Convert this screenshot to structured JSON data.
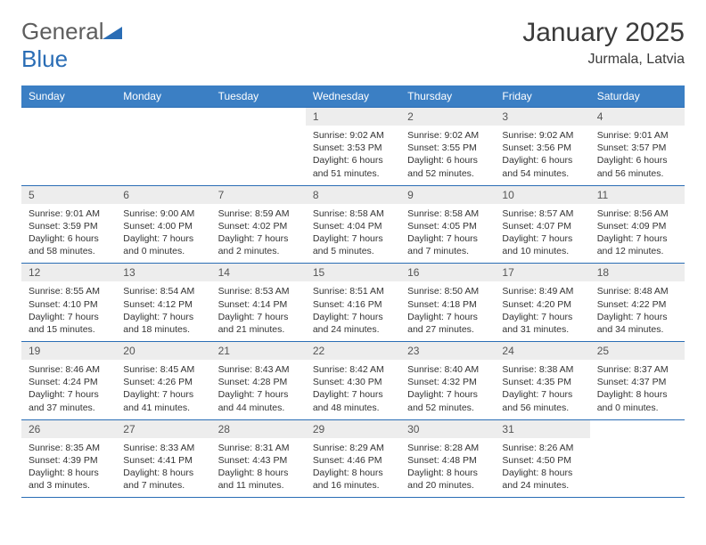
{
  "brand": {
    "word1": "General",
    "word2": "Blue"
  },
  "title": "January 2025",
  "location": "Jurmala, Latvia",
  "colors": {
    "header_bg": "#3b7fc4",
    "header_text": "#ffffff",
    "border": "#2a6db5",
    "daynum_bg": "#ededed",
    "logo_blue": "#2a6db5",
    "logo_gray": "#5e5e5e"
  },
  "weekdays": [
    "Sunday",
    "Monday",
    "Tuesday",
    "Wednesday",
    "Thursday",
    "Friday",
    "Saturday"
  ],
  "weeks": [
    [
      {
        "n": "",
        "sr": "",
        "ss": "",
        "dl": ""
      },
      {
        "n": "",
        "sr": "",
        "ss": "",
        "dl": ""
      },
      {
        "n": "",
        "sr": "",
        "ss": "",
        "dl": ""
      },
      {
        "n": "1",
        "sr": "Sunrise: 9:02 AM",
        "ss": "Sunset: 3:53 PM",
        "dl": "Daylight: 6 hours and 51 minutes."
      },
      {
        "n": "2",
        "sr": "Sunrise: 9:02 AM",
        "ss": "Sunset: 3:55 PM",
        "dl": "Daylight: 6 hours and 52 minutes."
      },
      {
        "n": "3",
        "sr": "Sunrise: 9:02 AM",
        "ss": "Sunset: 3:56 PM",
        "dl": "Daylight: 6 hours and 54 minutes."
      },
      {
        "n": "4",
        "sr": "Sunrise: 9:01 AM",
        "ss": "Sunset: 3:57 PM",
        "dl": "Daylight: 6 hours and 56 minutes."
      }
    ],
    [
      {
        "n": "5",
        "sr": "Sunrise: 9:01 AM",
        "ss": "Sunset: 3:59 PM",
        "dl": "Daylight: 6 hours and 58 minutes."
      },
      {
        "n": "6",
        "sr": "Sunrise: 9:00 AM",
        "ss": "Sunset: 4:00 PM",
        "dl": "Daylight: 7 hours and 0 minutes."
      },
      {
        "n": "7",
        "sr": "Sunrise: 8:59 AM",
        "ss": "Sunset: 4:02 PM",
        "dl": "Daylight: 7 hours and 2 minutes."
      },
      {
        "n": "8",
        "sr": "Sunrise: 8:58 AM",
        "ss": "Sunset: 4:04 PM",
        "dl": "Daylight: 7 hours and 5 minutes."
      },
      {
        "n": "9",
        "sr": "Sunrise: 8:58 AM",
        "ss": "Sunset: 4:05 PM",
        "dl": "Daylight: 7 hours and 7 minutes."
      },
      {
        "n": "10",
        "sr": "Sunrise: 8:57 AM",
        "ss": "Sunset: 4:07 PM",
        "dl": "Daylight: 7 hours and 10 minutes."
      },
      {
        "n": "11",
        "sr": "Sunrise: 8:56 AM",
        "ss": "Sunset: 4:09 PM",
        "dl": "Daylight: 7 hours and 12 minutes."
      }
    ],
    [
      {
        "n": "12",
        "sr": "Sunrise: 8:55 AM",
        "ss": "Sunset: 4:10 PM",
        "dl": "Daylight: 7 hours and 15 minutes."
      },
      {
        "n": "13",
        "sr": "Sunrise: 8:54 AM",
        "ss": "Sunset: 4:12 PM",
        "dl": "Daylight: 7 hours and 18 minutes."
      },
      {
        "n": "14",
        "sr": "Sunrise: 8:53 AM",
        "ss": "Sunset: 4:14 PM",
        "dl": "Daylight: 7 hours and 21 minutes."
      },
      {
        "n": "15",
        "sr": "Sunrise: 8:51 AM",
        "ss": "Sunset: 4:16 PM",
        "dl": "Daylight: 7 hours and 24 minutes."
      },
      {
        "n": "16",
        "sr": "Sunrise: 8:50 AM",
        "ss": "Sunset: 4:18 PM",
        "dl": "Daylight: 7 hours and 27 minutes."
      },
      {
        "n": "17",
        "sr": "Sunrise: 8:49 AM",
        "ss": "Sunset: 4:20 PM",
        "dl": "Daylight: 7 hours and 31 minutes."
      },
      {
        "n": "18",
        "sr": "Sunrise: 8:48 AM",
        "ss": "Sunset: 4:22 PM",
        "dl": "Daylight: 7 hours and 34 minutes."
      }
    ],
    [
      {
        "n": "19",
        "sr": "Sunrise: 8:46 AM",
        "ss": "Sunset: 4:24 PM",
        "dl": "Daylight: 7 hours and 37 minutes."
      },
      {
        "n": "20",
        "sr": "Sunrise: 8:45 AM",
        "ss": "Sunset: 4:26 PM",
        "dl": "Daylight: 7 hours and 41 minutes."
      },
      {
        "n": "21",
        "sr": "Sunrise: 8:43 AM",
        "ss": "Sunset: 4:28 PM",
        "dl": "Daylight: 7 hours and 44 minutes."
      },
      {
        "n": "22",
        "sr": "Sunrise: 8:42 AM",
        "ss": "Sunset: 4:30 PM",
        "dl": "Daylight: 7 hours and 48 minutes."
      },
      {
        "n": "23",
        "sr": "Sunrise: 8:40 AM",
        "ss": "Sunset: 4:32 PM",
        "dl": "Daylight: 7 hours and 52 minutes."
      },
      {
        "n": "24",
        "sr": "Sunrise: 8:38 AM",
        "ss": "Sunset: 4:35 PM",
        "dl": "Daylight: 7 hours and 56 minutes."
      },
      {
        "n": "25",
        "sr": "Sunrise: 8:37 AM",
        "ss": "Sunset: 4:37 PM",
        "dl": "Daylight: 8 hours and 0 minutes."
      }
    ],
    [
      {
        "n": "26",
        "sr": "Sunrise: 8:35 AM",
        "ss": "Sunset: 4:39 PM",
        "dl": "Daylight: 8 hours and 3 minutes."
      },
      {
        "n": "27",
        "sr": "Sunrise: 8:33 AM",
        "ss": "Sunset: 4:41 PM",
        "dl": "Daylight: 8 hours and 7 minutes."
      },
      {
        "n": "28",
        "sr": "Sunrise: 8:31 AM",
        "ss": "Sunset: 4:43 PM",
        "dl": "Daylight: 8 hours and 11 minutes."
      },
      {
        "n": "29",
        "sr": "Sunrise: 8:29 AM",
        "ss": "Sunset: 4:46 PM",
        "dl": "Daylight: 8 hours and 16 minutes."
      },
      {
        "n": "30",
        "sr": "Sunrise: 8:28 AM",
        "ss": "Sunset: 4:48 PM",
        "dl": "Daylight: 8 hours and 20 minutes."
      },
      {
        "n": "31",
        "sr": "Sunrise: 8:26 AM",
        "ss": "Sunset: 4:50 PM",
        "dl": "Daylight: 8 hours and 24 minutes."
      },
      {
        "n": "",
        "sr": "",
        "ss": "",
        "dl": ""
      }
    ]
  ]
}
